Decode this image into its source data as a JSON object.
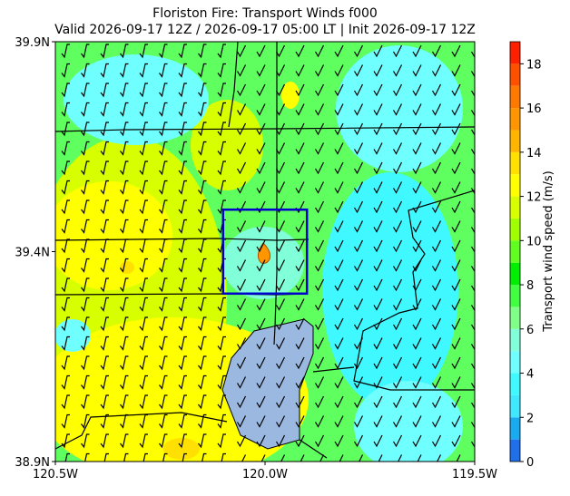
{
  "map": {
    "title": "Floriston Fire: Transport Winds f000",
    "subtitle": "Valid 2026-09-17 12Z / 2026-09-17 05:00 LT | Init 2026-09-17 12Z",
    "xlim": [
      -120.5,
      -119.5
    ],
    "ylim": [
      38.9,
      39.9
    ],
    "xticks": [
      {
        "value": -120.5,
        "label": "120.5W"
      },
      {
        "value": -120.0,
        "label": "120.0W"
      },
      {
        "value": -119.5,
        "label": "119.5W"
      }
    ],
    "yticks": [
      {
        "value": 38.9,
        "label": "38.9N"
      },
      {
        "value": 39.4,
        "label": "39.4N"
      },
      {
        "value": 39.9,
        "label": "39.9N"
      }
    ],
    "fire_box": {
      "lon": [
        -120.1,
        -119.9
      ],
      "lat": [
        39.3,
        39.5
      ]
    }
  },
  "colorbar": {
    "label": "Transport wind speed (m/s)",
    "levels": [
      0,
      1,
      2,
      3,
      4,
      5,
      6,
      7,
      8,
      9,
      10,
      11,
      12,
      13,
      14,
      15,
      16,
      17,
      18,
      19
    ],
    "colors": [
      "#1f6feb",
      "#19aaf0",
      "#40e8ff",
      "#40f8ff",
      "#70ffff",
      "#80ffd8",
      "#80ff88",
      "#40ff40",
      "#00ee00",
      "#60ff20",
      "#a0ff00",
      "#d8ff00",
      "#ffff00",
      "#ffe000",
      "#ffb400",
      "#ff9600",
      "#ff7800",
      "#ff5000",
      "#ff2000"
    ],
    "ticks": [
      0,
      2,
      4,
      6,
      8,
      10,
      12,
      14,
      16,
      18
    ]
  }
}
